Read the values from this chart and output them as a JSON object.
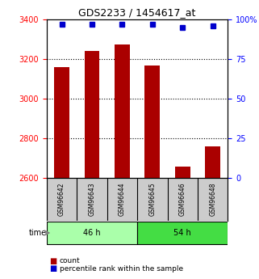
{
  "title": "GDS2233 / 1454617_at",
  "samples": [
    "GSM96642",
    "GSM96643",
    "GSM96644",
    "GSM96645",
    "GSM96646",
    "GSM96648"
  ],
  "counts": [
    3160,
    3240,
    3275,
    3170,
    2660,
    2760
  ],
  "percentiles": [
    97,
    97,
    97,
    97,
    95,
    96
  ],
  "groups": [
    {
      "label": "46 h",
      "indices": [
        0,
        1,
        2
      ],
      "color": "#aaffaa"
    },
    {
      "label": "54 h",
      "indices": [
        3,
        4,
        5
      ],
      "color": "#44dd44"
    }
  ],
  "bar_color": "#aa0000",
  "dot_color": "#0000cc",
  "ylim_left": [
    2600,
    3400
  ],
  "ylim_right": [
    0,
    100
  ],
  "yticks_left": [
    2600,
    2800,
    3000,
    3200,
    3400
  ],
  "yticks_right": [
    0,
    25,
    50,
    75,
    100
  ],
  "ytick_labels_right": [
    "0",
    "25",
    "50",
    "75",
    "100%"
  ],
  "grid_values": [
    2800,
    3000,
    3200
  ],
  "legend_items": [
    {
      "label": "count",
      "color": "#aa0000"
    },
    {
      "label": "percentile rank within the sample",
      "color": "#0000cc"
    }
  ],
  "time_label": "time",
  "bar_width": 0.5,
  "background_color": "#ffffff",
  "plot_bg_color": "#ffffff",
  "label_area_color": "#cccccc",
  "label_area_border": "#000000"
}
